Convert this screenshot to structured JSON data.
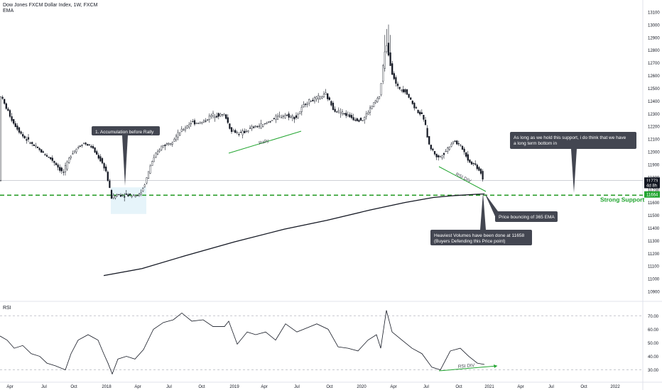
{
  "header": {
    "title": "Dow Jones FXCM Dollar Index, 1W, FXCM",
    "ema_label": "EMA"
  },
  "rsi_panel": {
    "label": "RSI"
  },
  "colors": {
    "accent_green": "#22a530",
    "support_line": "#2a9d2a",
    "price_line": "#b2b5be",
    "callout_bg": "#434651",
    "callout_text": "#ffffff",
    "axis_text": "#131722"
  },
  "chart_data": [
    {
      "type": "candlestick",
      "timeframe": "1W",
      "symbol": "Dow Jones FXCM Dollar Index",
      "y_ticks": [
        10900,
        11000,
        11100,
        11200,
        11300,
        11400,
        11500,
        11600,
        11700,
        11800,
        11900,
        12000,
        12100,
        12200,
        12300,
        12400,
        12500,
        12600,
        12700,
        12800,
        12900,
        13000,
        13100
      ],
      "ylim": [
        10850,
        13150
      ],
      "x_ticks": [
        "Apr",
        "Jul",
        "Oct",
        "2018",
        "Apr",
        "Jul",
        "Oct",
        "2019",
        "Apr",
        "Jul",
        "Oct",
        "2020",
        "Apr",
        "Jul",
        "Oct",
        "2021",
        "Apr",
        "Jul",
        "Oct",
        "2022"
      ],
      "price_path": [
        [
          0,
          12470
        ],
        [
          8,
          12370
        ],
        [
          20,
          12230
        ],
        [
          34,
          12120
        ],
        [
          48,
          12050
        ],
        [
          62,
          11990
        ],
        [
          76,
          11930
        ],
        [
          90,
          11830
        ],
        [
          102,
          11990
        ],
        [
          118,
          12070
        ],
        [
          130,
          12040
        ],
        [
          142,
          11940
        ],
        [
          150,
          11860
        ],
        [
          158,
          11640
        ],
        [
          166,
          11660
        ],
        [
          176,
          11660
        ],
        [
          186,
          11660
        ],
        [
          198,
          11660
        ],
        [
          206,
          11760
        ],
        [
          214,
          11910
        ],
        [
          228,
          12040
        ],
        [
          242,
          12080
        ],
        [
          256,
          12160
        ],
        [
          270,
          12230
        ],
        [
          286,
          12230
        ],
        [
          300,
          12290
        ],
        [
          318,
          12290
        ],
        [
          326,
          12170
        ],
        [
          340,
          12140
        ],
        [
          356,
          12190
        ],
        [
          372,
          12210
        ],
        [
          386,
          12260
        ],
        [
          402,
          12290
        ],
        [
          418,
          12270
        ],
        [
          432,
          12390
        ],
        [
          448,
          12420
        ],
        [
          460,
          12450
        ],
        [
          472,
          12330
        ],
        [
          486,
          12300
        ],
        [
          500,
          12260
        ],
        [
          512,
          12250
        ],
        [
          526,
          12370
        ],
        [
          536,
          12440
        ],
        [
          542,
          12750
        ],
        [
          546,
          12850
        ],
        [
          552,
          12650
        ],
        [
          560,
          12510
        ],
        [
          572,
          12480
        ],
        [
          584,
          12360
        ],
        [
          598,
          12260
        ],
        [
          606,
          12040
        ],
        [
          618,
          11950
        ],
        [
          628,
          12000
        ],
        [
          640,
          12090
        ],
        [
          652,
          12030
        ],
        [
          662,
          11920
        ],
        [
          670,
          11900
        ],
        [
          678,
          11840
        ],
        [
          682,
          11773
        ]
      ],
      "ema_path": [
        [
          146,
          11025
        ],
        [
          200,
          11080
        ],
        [
          260,
          11180
        ],
        [
          330,
          11290
        ],
        [
          400,
          11390
        ],
        [
          460,
          11460
        ],
        [
          520,
          11540
        ],
        [
          570,
          11600
        ],
        [
          610,
          11640
        ],
        [
          640,
          11655
        ],
        [
          670,
          11665
        ],
        [
          682,
          11668
        ]
      ],
      "horizontal_lines": [
        {
          "name": "Strong Support",
          "value": 11658,
          "style": "dashed",
          "color": "#2a9d2a"
        },
        {
          "name": "current price",
          "value": 11773,
          "style": "solid",
          "color": "#b2b5be"
        }
      ],
      "price_labels": [
        {
          "text": "11773",
          "value": 11773,
          "bg": "#131722"
        },
        {
          "text": "4d 8h",
          "value": 11738,
          "bg": "#131722"
        },
        {
          "text": "11664",
          "value": 11664,
          "bg": "#22a530"
        }
      ],
      "annotations": [
        {
          "text": "1. Accumulation before Rally",
          "kind": "callout"
        },
        {
          "text": "Rally",
          "kind": "trendline_label"
        },
        {
          "text": "RSI DIV",
          "kind": "trendline_label"
        },
        {
          "text": "As long as we hold this support, i do think that we have a long term bottom in",
          "kind": "callout"
        },
        {
          "text": "Strong Support",
          "kind": "line_label"
        },
        {
          "text": "Price bouncing of 365 EMA",
          "kind": "callout"
        },
        {
          "text": "Heaviest Volumes have been done at 11658\n(Buyers Defending this Price point)",
          "kind": "callout"
        }
      ]
    },
    {
      "type": "line",
      "name": "RSI",
      "y_ticks": [
        30,
        40,
        50,
        60,
        70
      ],
      "ylim": [
        23,
        78
      ],
      "dashed_levels": [
        70,
        30
      ],
      "rsi_path": [
        [
          0,
          55
        ],
        [
          10,
          52
        ],
        [
          20,
          46
        ],
        [
          32,
          48
        ],
        [
          44,
          42
        ],
        [
          56,
          40
        ],
        [
          66,
          35
        ],
        [
          78,
          33
        ],
        [
          92,
          30
        ],
        [
          100,
          42
        ],
        [
          110,
          52
        ],
        [
          124,
          56
        ],
        [
          138,
          52
        ],
        [
          146,
          42
        ],
        [
          152,
          35
        ],
        [
          158,
          27
        ],
        [
          166,
          38
        ],
        [
          178,
          40
        ],
        [
          190,
          38
        ],
        [
          202,
          45
        ],
        [
          216,
          60
        ],
        [
          230,
          65
        ],
        [
          244,
          67
        ],
        [
          256,
          72
        ],
        [
          270,
          66
        ],
        [
          286,
          67
        ],
        [
          300,
          62
        ],
        [
          316,
          62
        ],
        [
          322,
          66
        ],
        [
          334,
          49
        ],
        [
          348,
          58
        ],
        [
          360,
          56
        ],
        [
          374,
          58
        ],
        [
          388,
          52
        ],
        [
          402,
          64
        ],
        [
          418,
          58
        ],
        [
          432,
          61
        ],
        [
          446,
          64
        ],
        [
          462,
          60
        ],
        [
          476,
          47
        ],
        [
          490,
          46
        ],
        [
          504,
          44
        ],
        [
          518,
          52
        ],
        [
          530,
          56
        ],
        [
          536,
          46
        ],
        [
          544,
          74
        ],
        [
          552,
          58
        ],
        [
          566,
          52
        ],
        [
          580,
          46
        ],
        [
          594,
          42
        ],
        [
          608,
          32
        ],
        [
          620,
          30
        ],
        [
          634,
          44
        ],
        [
          648,
          46
        ],
        [
          660,
          40
        ],
        [
          672,
          35
        ],
        [
          682,
          34
        ]
      ],
      "annotations": [
        {
          "text": "RSI DIV",
          "kind": "trendline_label"
        }
      ]
    }
  ]
}
